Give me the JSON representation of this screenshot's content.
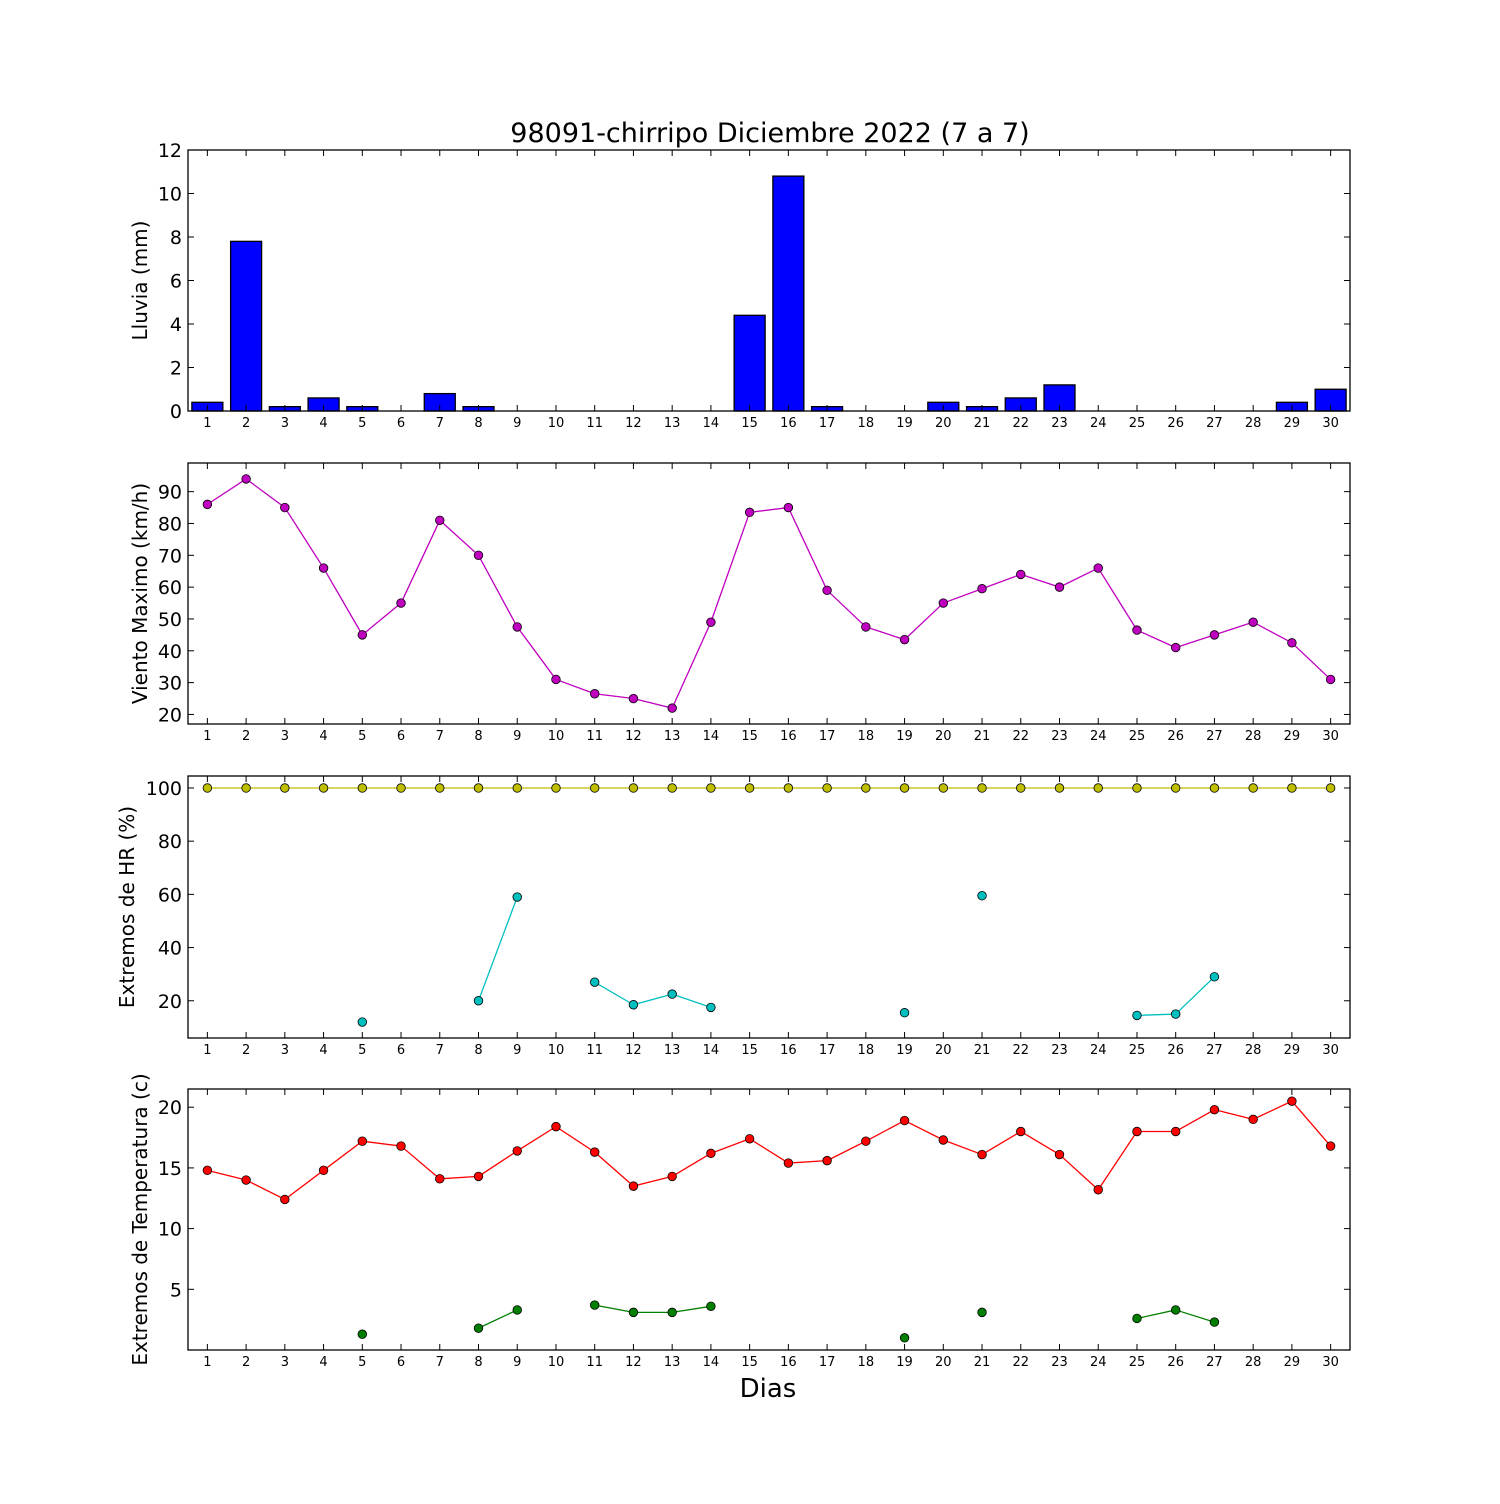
{
  "title": "98091-chirripo Diciembre 2022  (7 a 7)",
  "xlabel": "Dias",
  "colors": {
    "rain": "#0000ff",
    "wind": "#bf00bf",
    "hr_max": "#bfbf00",
    "hr_min": "#00bfbf",
    "temp_max": "#ff0000",
    "temp_min": "#007f00"
  },
  "chart_data": [
    {
      "type": "bar",
      "ylabel": "Lluvia (mm)",
      "xlim": [
        0.5,
        30.5
      ],
      "ylim": [
        0,
        12
      ],
      "yticks": [
        0,
        2,
        4,
        6,
        8,
        10,
        12
      ],
      "categories": [
        1,
        2,
        3,
        4,
        5,
        6,
        7,
        8,
        9,
        10,
        11,
        12,
        13,
        14,
        15,
        16,
        17,
        18,
        19,
        20,
        21,
        22,
        23,
        24,
        25,
        26,
        27,
        28,
        29,
        30
      ],
      "values": [
        0.4,
        7.8,
        0.2,
        0.6,
        0.2,
        0,
        0.8,
        0.2,
        0,
        0,
        0,
        0,
        0,
        0,
        4.4,
        10.8,
        0.2,
        0,
        0,
        0.4,
        0.2,
        0.6,
        1.2,
        0,
        0,
        0,
        0,
        0,
        0.4,
        1.0
      ]
    },
    {
      "type": "line",
      "ylabel": "Viento Maximo (km/h)",
      "xlim": [
        0.5,
        30.5
      ],
      "ylim": [
        17,
        99
      ],
      "yticks": [
        20,
        30,
        40,
        50,
        60,
        70,
        80,
        90
      ],
      "x": [
        1,
        2,
        3,
        4,
        5,
        6,
        7,
        8,
        9,
        10,
        11,
        12,
        13,
        14,
        15,
        16,
        17,
        18,
        19,
        20,
        21,
        22,
        23,
        24,
        25,
        26,
        27,
        28,
        29,
        30
      ],
      "series": [
        {
          "values": [
            86,
            94,
            85,
            66,
            45,
            55,
            81,
            70,
            47.5,
            31,
            26.5,
            25,
            22,
            49,
            83.5,
            85,
            59,
            47.5,
            43.5,
            55,
            59.5,
            64,
            60,
            66,
            46.5,
            41,
            45,
            49,
            42.5,
            31
          ]
        }
      ]
    },
    {
      "type": "line",
      "ylabel": "Extremos de HR (%)",
      "xlim": [
        0.5,
        30.5
      ],
      "ylim": [
        6,
        104.5
      ],
      "yticks": [
        20,
        40,
        60,
        80,
        100
      ],
      "x": [
        1,
        2,
        3,
        4,
        5,
        6,
        7,
        8,
        9,
        10,
        11,
        12,
        13,
        14,
        15,
        16,
        17,
        18,
        19,
        20,
        21,
        22,
        23,
        24,
        25,
        26,
        27,
        28,
        29,
        30
      ],
      "series": [
        {
          "values": [
            100,
            100,
            100,
            100,
            100,
            100,
            100,
            100,
            100,
            100,
            100,
            100,
            100,
            100,
            100,
            100,
            100,
            100,
            100,
            100,
            100,
            100,
            100,
            100,
            100,
            100,
            100,
            100,
            100,
            100
          ]
        },
        {
          "values": [
            null,
            null,
            null,
            null,
            12,
            null,
            null,
            20,
            59,
            null,
            27,
            18.5,
            22.5,
            17.5,
            null,
            null,
            null,
            null,
            15.5,
            null,
            59.5,
            null,
            null,
            null,
            14.5,
            15,
            29,
            null,
            null,
            null
          ]
        }
      ]
    },
    {
      "type": "line",
      "ylabel": "Extremos de Temperatura (c)",
      "xlim": [
        0.5,
        30.5
      ],
      "ylim": [
        0,
        21.5
      ],
      "yticks": [
        5,
        10,
        15,
        20
      ],
      "x": [
        1,
        2,
        3,
        4,
        5,
        6,
        7,
        8,
        9,
        10,
        11,
        12,
        13,
        14,
        15,
        16,
        17,
        18,
        19,
        20,
        21,
        22,
        23,
        24,
        25,
        26,
        27,
        28,
        29,
        30
      ],
      "series": [
        {
          "values": [
            14.8,
            14.0,
            12.4,
            14.8,
            17.2,
            16.8,
            14.1,
            14.3,
            16.4,
            18.4,
            16.3,
            13.5,
            14.3,
            16.2,
            17.4,
            15.4,
            15.6,
            17.2,
            18.9,
            17.3,
            16.1,
            18.0,
            16.1,
            13.2,
            18.0,
            18.0,
            19.8,
            19.0,
            20.5,
            16.8
          ]
        },
        {
          "values": [
            null,
            null,
            null,
            null,
            1.3,
            null,
            null,
            1.8,
            3.3,
            null,
            3.7,
            3.1,
            3.1,
            3.6,
            null,
            null,
            null,
            null,
            1.0,
            null,
            3.1,
            null,
            null,
            null,
            2.6,
            3.3,
            2.3,
            null,
            null,
            null
          ]
        }
      ]
    }
  ]
}
